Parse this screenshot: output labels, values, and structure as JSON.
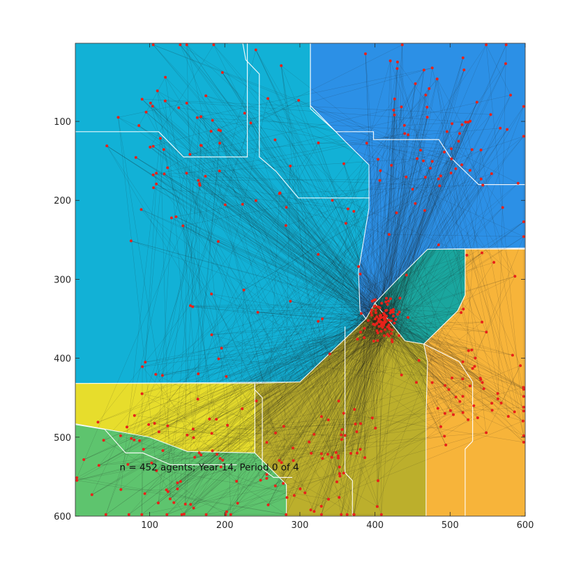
{
  "chart_data": {
    "type": "scatter",
    "title": "",
    "xlabel": "",
    "ylabel": "",
    "xlim": [
      1,
      600
    ],
    "ylim": [
      600,
      1
    ],
    "y_reversed": true,
    "grid": false,
    "legend": "none",
    "x_ticks": [
      100,
      200,
      300,
      400,
      500,
      600
    ],
    "y_ticks": [
      100,
      200,
      300,
      400,
      500,
      600
    ],
    "annotation": {
      "text": "n = 452 agents; Year 14, Period 0 of 4",
      "x": 60,
      "y": 542
    },
    "colors": {
      "agents": "#e8221a",
      "trails": "#1a1a1a",
      "boundaries": "#ffffff"
    },
    "regions": [
      {
        "name": "north-west",
        "color": "#12b1d6",
        "polygon": [
          [
            1,
            1
          ],
          [
            314,
            1
          ],
          [
            314,
            80
          ],
          [
            360,
            125
          ],
          [
            392,
            155
          ],
          [
            392,
            210
          ],
          [
            378,
            290
          ],
          [
            380,
            340
          ],
          [
            388,
            350
          ],
          [
            300,
            430
          ],
          [
            1,
            432
          ]
        ]
      },
      {
        "name": "north-east",
        "color": "#2c90e6",
        "polygon": [
          [
            314,
            1
          ],
          [
            600,
            1
          ],
          [
            600,
            260
          ],
          [
            470,
            262
          ],
          [
            430,
            300
          ],
          [
            400,
            330
          ],
          [
            388,
            350
          ],
          [
            380,
            340
          ],
          [
            378,
            290
          ],
          [
            392,
            210
          ],
          [
            392,
            155
          ],
          [
            360,
            125
          ],
          [
            314,
            80
          ]
        ]
      },
      {
        "name": "center",
        "color": "#1aa69e",
        "polygon": [
          [
            470,
            262
          ],
          [
            520,
            262
          ],
          [
            520,
            320
          ],
          [
            510,
            340
          ],
          [
            465,
            382
          ],
          [
            440,
            378
          ],
          [
            400,
            330
          ],
          [
            430,
            300
          ]
        ]
      },
      {
        "name": "east",
        "color": "#f7b43a",
        "polygon": [
          [
            520,
            262
          ],
          [
            600,
            262
          ],
          [
            600,
            600
          ],
          [
            468,
            600
          ],
          [
            468,
            470
          ],
          [
            470,
            405
          ],
          [
            465,
            382
          ],
          [
            510,
            340
          ],
          [
            520,
            320
          ]
        ]
      },
      {
        "name": "south-central",
        "color": "#bcaf2c",
        "polygon": [
          [
            388,
            350
          ],
          [
            400,
            330
          ],
          [
            440,
            378
          ],
          [
            465,
            382
          ],
          [
            470,
            405
          ],
          [
            468,
            470
          ],
          [
            468,
            600
          ],
          [
            282,
            600
          ],
          [
            282,
            560
          ],
          [
            240,
            520
          ],
          [
            240,
            432
          ],
          [
            300,
            430
          ]
        ]
      },
      {
        "name": "south-west",
        "color": "#e7dd2c",
        "polygon": [
          [
            1,
            432
          ],
          [
            240,
            432
          ],
          [
            240,
            520
          ],
          [
            150,
            518
          ],
          [
            100,
            500
          ],
          [
            1,
            483
          ]
        ]
      },
      {
        "name": "bottom-left",
        "color": "#5ec46e",
        "polygon": [
          [
            1,
            483
          ],
          [
            100,
            500
          ],
          [
            150,
            518
          ],
          [
            240,
            520
          ],
          [
            282,
            560
          ],
          [
            282,
            600
          ],
          [
            1,
            600
          ]
        ]
      }
    ],
    "boundary_lines": [
      [
        [
          1,
          113
        ],
        [
          112,
          113
        ],
        [
          145,
          145
        ],
        [
          230,
          145
        ],
        [
          230,
          1
        ]
      ],
      [
        [
          204,
          1
        ],
        [
          224,
          1
        ],
        [
          228,
          22
        ],
        [
          246,
          40
        ],
        [
          246,
          145
        ],
        [
          268,
          163
        ],
        [
          298,
          197
        ],
        [
          393,
          197
        ]
      ],
      [
        [
          314,
          1
        ],
        [
          314,
          84
        ],
        [
          348,
          113
        ],
        [
          398,
          113
        ],
        [
          398,
          123
        ],
        [
          485,
          123
        ],
        [
          500,
          145
        ],
        [
          538,
          180
        ],
        [
          600,
          180
        ]
      ],
      [
        [
          1,
          484
        ],
        [
          40,
          490
        ],
        [
          68,
          520
        ],
        [
          91,
          520
        ],
        [
          128,
          535
        ],
        [
          216,
          535
        ]
      ],
      [
        [
          240,
          433
        ],
        [
          240,
          440
        ],
        [
          250,
          450
        ],
        [
          250,
          540
        ],
        [
          265,
          551
        ],
        [
          290,
          551
        ]
      ],
      [
        [
          360,
          360
        ],
        [
          360,
          545
        ],
        [
          370,
          555
        ],
        [
          370,
          600
        ]
      ],
      [
        [
          465,
          382
        ],
        [
          512,
          404
        ],
        [
          530,
          430
        ],
        [
          530,
          505
        ],
        [
          520,
          515
        ],
        [
          520,
          600
        ]
      ]
    ],
    "agent_clusters": [
      {
        "name": "center",
        "cx": 410,
        "cy": 350,
        "spread": 22,
        "count": 90
      },
      {
        "name": "north-west",
        "cx": 150,
        "cy": 120,
        "spread": 95,
        "count": 55
      },
      {
        "name": "north-east",
        "cx": 490,
        "cy": 120,
        "spread": 100,
        "count": 70
      },
      {
        "name": "east",
        "cx": 540,
        "cy": 440,
        "spread": 70,
        "count": 50
      },
      {
        "name": "south-central",
        "cx": 330,
        "cy": 540,
        "spread": 70,
        "count": 55
      },
      {
        "name": "south-west",
        "cx": 120,
        "cy": 500,
        "spread": 90,
        "count": 45
      },
      {
        "name": "bottom-left",
        "cx": 140,
        "cy": 575,
        "spread": 80,
        "count": 20
      },
      {
        "name": "scattered",
        "cx": 300,
        "cy": 300,
        "spread": 260,
        "count": 67
      }
    ],
    "agent_count": 452
  }
}
